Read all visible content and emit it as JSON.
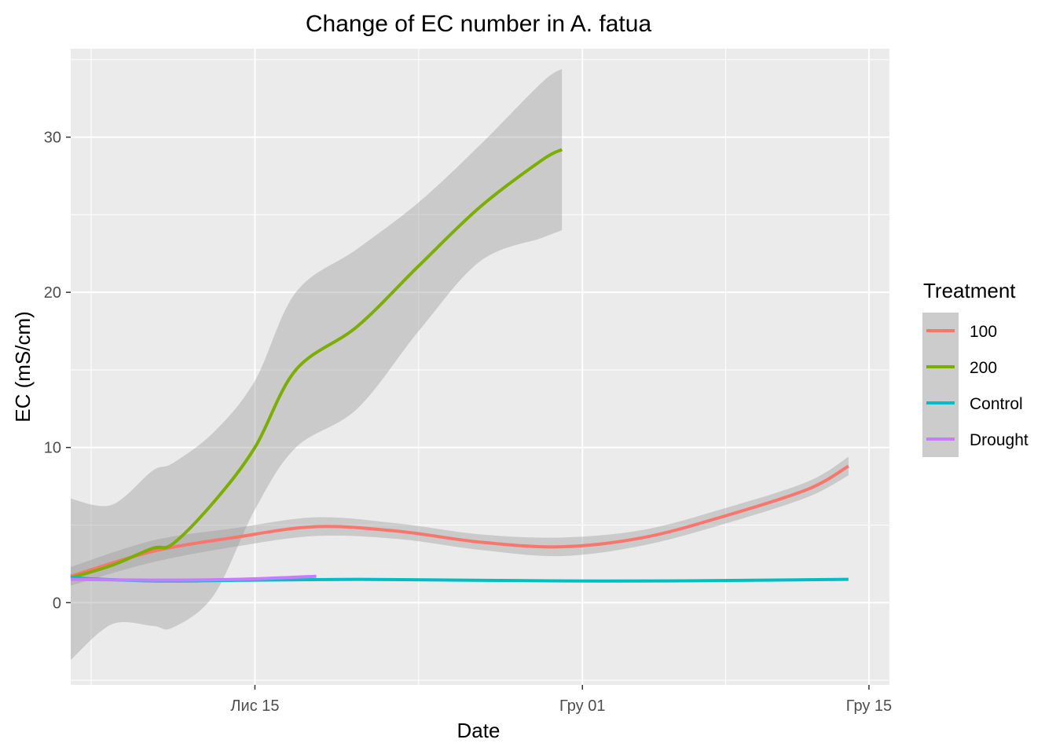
{
  "chart_data": {
    "type": "line",
    "title": "Change of EC number in A. fatua",
    "xlabel": "Date",
    "ylabel": "EC (mS/cm)",
    "x_axis": {
      "type": "date",
      "range": [
        "2023-11-06",
        "2023-12-16"
      ],
      "ticks": [
        {
          "date": "2023-11-15",
          "label": "Лис 15"
        },
        {
          "date": "2023-12-01",
          "label": "Гру 01"
        },
        {
          "date": "2023-12-15",
          "label": "Гру 15"
        }
      ]
    },
    "y_axis": {
      "range": [
        -5.3,
        35.7
      ],
      "ticks": [
        0,
        10,
        20,
        30
      ]
    },
    "grid": true,
    "background": "#ebebeb",
    "legend": {
      "title": "Treatment",
      "placement": "right"
    },
    "series": [
      {
        "name": "100",
        "color": "#F8766D",
        "ribbon": true,
        "points": [
          {
            "x": "2023-11-06",
            "y": 1.7,
            "lo": 1.1,
            "hi": 2.3
          },
          {
            "x": "2023-11-10",
            "y": 3.3,
            "lo": 2.6,
            "hi": 4.0
          },
          {
            "x": "2023-11-14",
            "y": 4.2,
            "lo": 3.6,
            "hi": 4.8
          },
          {
            "x": "2023-11-18",
            "y": 4.9,
            "lo": 4.3,
            "hi": 5.5
          },
          {
            "x": "2023-11-22",
            "y": 4.6,
            "lo": 4.1,
            "hi": 5.1
          },
          {
            "x": "2023-11-26",
            "y": 3.9,
            "lo": 3.4,
            "hi": 4.4
          },
          {
            "x": "2023-11-30",
            "y": 3.6,
            "lo": 3.0,
            "hi": 4.2
          },
          {
            "x": "2023-12-04",
            "y": 4.2,
            "lo": 3.7,
            "hi": 4.7
          },
          {
            "x": "2023-12-08",
            "y": 5.6,
            "lo": 5.1,
            "hi": 6.1
          },
          {
            "x": "2023-12-12",
            "y": 7.3,
            "lo": 6.8,
            "hi": 7.8
          },
          {
            "x": "2023-12-14",
            "y": 8.8,
            "lo": 8.2,
            "hi": 9.4
          }
        ]
      },
      {
        "name": "200",
        "color": "#7CAE00",
        "ribbon": true,
        "points": [
          {
            "x": "2023-11-06",
            "y": 1.6,
            "lo": -3.7,
            "hi": 6.7
          },
          {
            "x": "2023-11-08",
            "y": 2.4,
            "lo": -1.4,
            "hi": 6.3
          },
          {
            "x": "2023-11-10",
            "y": 3.5,
            "lo": -1.5,
            "hi": 8.5
          },
          {
            "x": "2023-11-11",
            "y": 3.8,
            "lo": -1.6,
            "hi": 9.0
          },
          {
            "x": "2023-11-13",
            "y": 6.5,
            "lo": 0.5,
            "hi": 11.0
          },
          {
            "x": "2023-11-15",
            "y": 10.0,
            "lo": 6.0,
            "hi": 14.3
          },
          {
            "x": "2023-11-17",
            "y": 15.0,
            "lo": 10.0,
            "hi": 20.0
          },
          {
            "x": "2023-11-20",
            "y": 17.8,
            "lo": 12.5,
            "hi": 22.8
          },
          {
            "x": "2023-11-23",
            "y": 21.7,
            "lo": 17.5,
            "hi": 25.8
          },
          {
            "x": "2023-11-26",
            "y": 25.5,
            "lo": 22.0,
            "hi": 29.5
          },
          {
            "x": "2023-11-29",
            "y": 28.5,
            "lo": 23.5,
            "hi": 33.5
          },
          {
            "x": "2023-11-30",
            "y": 29.2,
            "lo": 24.0,
            "hi": 34.4
          }
        ]
      },
      {
        "name": "Control",
        "color": "#00BFC4",
        "ribbon": false,
        "points": [
          {
            "x": "2023-11-06",
            "y": 1.6
          },
          {
            "x": "2023-11-10",
            "y": 1.4
          },
          {
            "x": "2023-11-15",
            "y": 1.45
          },
          {
            "x": "2023-11-20",
            "y": 1.5
          },
          {
            "x": "2023-11-25",
            "y": 1.45
          },
          {
            "x": "2023-11-30",
            "y": 1.4
          },
          {
            "x": "2023-12-05",
            "y": 1.4
          },
          {
            "x": "2023-12-10",
            "y": 1.45
          },
          {
            "x": "2023-12-14",
            "y": 1.5
          }
        ]
      },
      {
        "name": "Drought",
        "color": "#C77CFF",
        "ribbon": false,
        "points": [
          {
            "x": "2023-11-06",
            "y": 1.5
          },
          {
            "x": "2023-11-10",
            "y": 1.45
          },
          {
            "x": "2023-11-14",
            "y": 1.5
          },
          {
            "x": "2023-11-18",
            "y": 1.7
          }
        ]
      }
    ]
  }
}
